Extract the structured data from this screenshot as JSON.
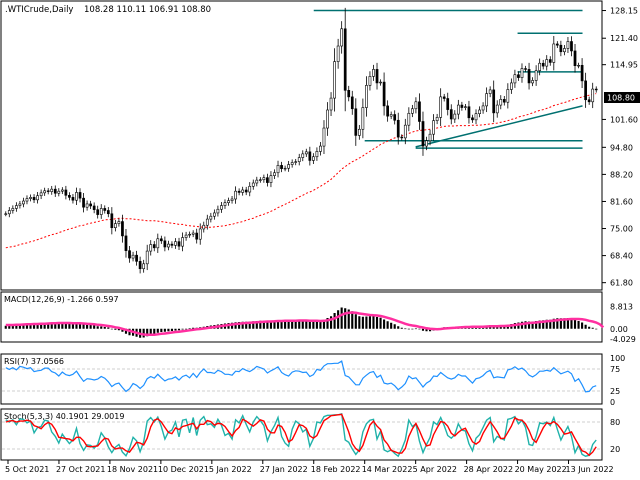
{
  "window": {
    "title": ".WTICrude,Daily",
    "ohlc": "108.28 110.11 106.91 108.80"
  },
  "chart_data": {
    "type": "candlestick",
    "instrument": ".WTICrude",
    "timeframe": "Daily",
    "last_price": "108.80",
    "x_ticks": [
      "5 Oct 2021",
      "27 Oct 2021",
      "18 Nov 2021",
      "10 Dec 2021",
      "5 Jan 2022",
      "27 Jan 2022",
      "18 Feb 2022",
      "14 Mar 2022",
      "5 Apr 2022",
      "28 Apr 2022",
      "20 May 2022",
      "13 Jun 2022"
    ],
    "price_ticks": [
      "128.15",
      "121.40",
      "114.95",
      "108.80",
      "101.60",
      "94.80",
      "88.20",
      "81.60",
      "75.00",
      "68.40",
      "61.80"
    ],
    "price_range": [
      60.5,
      129.5
    ],
    "closes": [
      78.6,
      79.4,
      79.9,
      80.6,
      81.0,
      81.7,
      82.3,
      82.6,
      82.0,
      83.0,
      83.7,
      84.2,
      84.0,
      84.6,
      83.6,
      84.1,
      84.4,
      83.1,
      82.6,
      81.9,
      83.8,
      82.4,
      80.2,
      81.0,
      80.5,
      79.6,
      78.4,
      79.9,
      79.4,
      78.6,
      75.2,
      76.2,
      76.7,
      73.2,
      69.6,
      67.8,
      68.5,
      67.0,
      65.2,
      66.4,
      69.5,
      71.1,
      70.3,
      72.5,
      72.0,
      70.5,
      71.2,
      70.9,
      71.8,
      70.7,
      72.8,
      73.4,
      73.6,
      73.9,
      72.4,
      74.9,
      75.8,
      77.3,
      78.0,
      78.8,
      79.7,
      80.6,
      81.3,
      81.8,
      82.2,
      84.1,
      83.8,
      84.4,
      83.9,
      85.3,
      86.1,
      86.8,
      86.9,
      87.4,
      86.2,
      87.9,
      88.6,
      90.4,
      89.6,
      89.7,
      90.6,
      91.1,
      91.3,
      92.3,
      93.2,
      93.7,
      91.6,
      92.5,
      93.8,
      95.1,
      99.5,
      103.9,
      106.8,
      115.7,
      119.5,
      123.7,
      108.7,
      107.1,
      104.2,
      97.7,
      99.2,
      104.5,
      109.9,
      112.1,
      113.8,
      110.5,
      110.7,
      104.9,
      102.4,
      102.8,
      101.4,
      97.3,
      97.1,
      100.2,
      103.1,
      104.2,
      105.9,
      101.1,
      95.1,
      96.4,
      98.0,
      101.3,
      102.1,
      107.1,
      106.7,
      104.0,
      101.7,
      102.9,
      105.1,
      104.5,
      104.7,
      102.0,
      101.5,
      103.0,
      103.9,
      104.9,
      107.9,
      108.8,
      103.2,
      105.1,
      106.5,
      105.8,
      108.9,
      110.5,
      112.5,
      111.8,
      114.0,
      113.8,
      110.5,
      111.1,
      113.5,
      115.3,
      114.6,
      116.2,
      115.5,
      120.0,
      119.7,
      118.1,
      118.9,
      120.6,
      118.3,
      114.7,
      114.8,
      111.0,
      106.4,
      105.9,
      109.0,
      108.8
    ],
    "ma_closes": [
      70.3,
      70.5,
      70.6,
      70.8,
      71.1,
      71.3,
      71.5,
      71.8,
      72.0,
      72.3,
      72.6,
      72.9,
      73.2,
      73.5,
      73.7,
      74.0,
      74.3,
      74.6,
      74.9,
      75.1,
      75.4,
      75.7,
      75.8,
      76.1,
      76.3,
      76.5,
      76.7,
      76.9,
      77.1,
      77.2,
      77.2,
      77.4,
      77.5,
      77.5,
      77.4,
      77.4,
      77.3,
      77.2,
      77.1,
      77.0,
      76.9,
      76.9,
      76.9,
      76.8,
      76.7,
      76.6,
      76.4,
      76.3,
      76.2,
      76.0,
      76.0,
      75.8,
      75.7,
      75.6,
      75.5,
      75.4,
      75.3,
      75.3,
      75.3,
      75.4,
      75.5,
      75.6,
      75.7,
      75.9,
      76.0,
      76.3,
      76.5,
      76.7,
      77.0,
      77.3,
      77.5,
      77.9,
      78.2,
      78.5,
      78.8,
      79.2,
      79.6,
      80.1,
      80.5,
      80.9,
      81.3,
      81.8,
      82.2,
      82.7,
      83.1,
      83.6,
      83.9,
      84.3,
      84.8,
      85.3,
      85.8,
      86.4,
      87.0,
      87.8,
      88.6,
      89.5,
      90.1,
      90.7,
      91.3,
      91.7,
      92.2,
      92.7,
      93.3,
      93.8,
      94.4,
      94.9,
      95.5,
      95.9,
      96.3,
      96.7,
      97.1,
      97.3,
      97.6,
      97.9,
      98.2,
      98.5,
      98.8,
      98.9,
      99.0,
      99.1,
      99.2,
      99.3,
      99.5,
      99.7,
      99.9,
      100.0,
      100.0,
      100.0,
      100.1,
      100.1,
      100.1,
      100.1,
      100.2,
      100.2,
      100.2,
      100.3,
      100.4,
      100.5,
      100.6,
      100.7,
      100.9,
      101.1,
      101.3,
      101.6,
      101.8,
      102.2,
      102.4,
      102.6,
      102.9,
      103.2,
      103.5,
      103.8,
      104.0,
      104.3,
      104.6,
      105.0,
      105.2,
      105.5,
      105.7,
      106.0,
      106.3,
      106.6,
      106.8,
      107.1,
      107.3,
      107.5,
      107.7,
      107.9
    ],
    "trendlines": [
      {
        "color": "#007070",
        "points": [
          [
            "18 Feb 2022",
            128.15
          ],
          [
            "13 Jun 2022",
            128.15
          ]
        ]
      },
      {
        "color": "#007070",
        "points": [
          [
            "14 Mar 2022",
            96.4
          ],
          [
            "13 Jun 2022",
            96.4
          ]
        ]
      },
      {
        "color": "#007070",
        "points": [
          [
            "5 Apr 2022",
            94.6
          ],
          [
            "13 Jun 2022",
            94.6
          ]
        ]
      },
      {
        "color": "#007070",
        "points": [
          [
            "5 Apr 2022",
            94.9
          ],
          [
            "13 Jun 2022",
            104.9
          ]
        ]
      },
      {
        "color": "#007070",
        "points": [
          [
            "20 May 2022",
            122.6
          ],
          [
            "13 Jun 2022",
            122.6
          ]
        ]
      },
      {
        "color": "#007070",
        "points": [
          [
            "20 May 2022",
            113.2
          ],
          [
            "13 Jun 2022",
            113.2
          ]
        ]
      }
    ],
    "ma_color": "#ff0000",
    "price_label_bg": "#000000",
    "panels": {
      "macd": {
        "label": "MACD(12,26,9) -1.266 0.597",
        "ticks": [
          "8.813",
          "0.00",
          "-4.029"
        ],
        "range": [
          -4.5,
          9.5
        ],
        "histogram_color": "#000000",
        "signal_color": "#ff2fa0",
        "values": [
          1.2,
          1.5,
          1.7,
          1.8,
          1.9,
          2.0,
          2.1,
          2.1,
          2.1,
          2.2,
          2.2,
          2.3,
          2.4,
          2.5,
          2.4,
          2.4,
          2.4,
          2.2,
          2.1,
          2.0,
          2.2,
          2.0,
          1.7,
          1.6,
          1.5,
          1.3,
          1.0,
          0.9,
          0.7,
          0.5,
          0.0,
          -0.4,
          -0.6,
          -1.2,
          -2.0,
          -2.6,
          -2.8,
          -3.2,
          -3.6,
          -3.5,
          -3.0,
          -2.4,
          -2.1,
          -1.6,
          -1.3,
          -1.2,
          -1.0,
          -0.9,
          -0.7,
          -0.6,
          -0.3,
          0.0,
          0.2,
          0.4,
          0.4,
          0.6,
          0.8,
          1.1,
          1.3,
          1.5,
          1.7,
          1.9,
          2.1,
          2.3,
          2.4,
          2.6,
          2.7,
          2.8,
          2.8,
          2.9,
          3.0,
          3.1,
          3.2,
          3.2,
          3.1,
          3.2,
          3.3,
          3.4,
          3.4,
          3.3,
          3.3,
          3.3,
          3.3,
          3.3,
          3.3,
          3.3,
          3.1,
          3.0,
          3.0,
          3.0,
          3.5,
          4.3,
          5.0,
          6.3,
          7.4,
          8.5,
          8.2,
          7.7,
          7.0,
          5.8,
          5.0,
          4.8,
          4.9,
          5.0,
          5.0,
          4.7,
          4.4,
          3.7,
          3.0,
          2.4,
          1.8,
          1.0,
          0.4,
          0.1,
          0.0,
          0.0,
          0.1,
          -0.2,
          -0.8,
          -1.0,
          -1.0,
          -0.7,
          -0.4,
          0.2,
          0.6,
          0.7,
          0.7,
          0.7,
          0.9,
          1.0,
          1.1,
          0.9,
          0.8,
          0.8,
          0.9,
          1.0,
          1.3,
          1.5,
          1.2,
          1.2,
          1.3,
          1.3,
          1.6,
          1.9,
          2.3,
          2.5,
          2.8,
          3.0,
          2.9,
          2.9,
          3.1,
          3.3,
          3.4,
          3.6,
          3.6,
          4.0,
          4.2,
          4.2,
          4.2,
          4.3,
          4.0,
          3.5,
          3.1,
          2.5,
          1.6,
          0.8,
          0.4,
          0.0
        ],
        "signal": [
          1.5,
          1.5,
          1.5,
          1.6,
          1.6,
          1.7,
          1.8,
          1.8,
          1.9,
          1.9,
          2.0,
          2.0,
          2.1,
          2.2,
          2.2,
          2.3,
          2.3,
          2.3,
          2.3,
          2.2,
          2.2,
          2.2,
          2.1,
          2.0,
          1.9,
          1.8,
          1.6,
          1.5,
          1.3,
          1.1,
          0.9,
          0.6,
          0.4,
          0.0,
          -0.4,
          -0.8,
          -1.2,
          -1.6,
          -2.0,
          -2.3,
          -2.4,
          -2.4,
          -2.4,
          -2.2,
          -2.0,
          -1.9,
          -1.7,
          -1.5,
          -1.3,
          -1.2,
          -1.0,
          -0.8,
          -0.6,
          -0.4,
          -0.2,
          -0.1,
          0.1,
          0.3,
          0.5,
          0.7,
          0.9,
          1.1,
          1.3,
          1.5,
          1.7,
          1.9,
          2.0,
          2.2,
          2.3,
          2.4,
          2.5,
          2.6,
          2.7,
          2.8,
          2.9,
          2.9,
          3.0,
          3.1,
          3.1,
          3.2,
          3.2,
          3.2,
          3.2,
          3.3,
          3.3,
          3.3,
          3.2,
          3.2,
          3.2,
          3.1,
          3.2,
          3.4,
          3.7,
          4.2,
          4.8,
          5.6,
          6.1,
          6.4,
          6.5,
          6.4,
          6.1,
          5.9,
          5.7,
          5.5,
          5.4,
          5.3,
          5.1,
          4.8,
          4.4,
          4.0,
          3.5,
          3.0,
          2.5,
          2.0,
          1.6,
          1.3,
          1.1,
          0.8,
          0.5,
          0.2,
          0.0,
          -0.1,
          -0.2,
          -0.1,
          0.1,
          0.2,
          0.3,
          0.4,
          0.5,
          0.6,
          0.7,
          0.7,
          0.8,
          0.8,
          0.8,
          0.8,
          0.9,
          1.0,
          1.0,
          1.0,
          1.1,
          1.1,
          1.2,
          1.3,
          1.5,
          1.7,
          1.9,
          2.1,
          2.3,
          2.4,
          2.5,
          2.7,
          2.8,
          3.0,
          3.1,
          3.3,
          3.4,
          3.6,
          3.7,
          3.8,
          3.9,
          3.9,
          3.9,
          3.8,
          3.6,
          3.2,
          2.9,
          2.5,
          1.8,
          0.6
        ]
      },
      "rsi": {
        "label": "RSI(7) 37.0566",
        "ticks": [
          "100",
          "75",
          "25",
          "0"
        ],
        "range": [
          0,
          100
        ],
        "line_color": "#1e90ff",
        "values": [
          78,
          74,
          78,
          73,
          81,
          79,
          76,
          78,
          69,
          71,
          72,
          77,
          77,
          69,
          66,
          59,
          68,
          62,
          60,
          63,
          70,
          58,
          47,
          53,
          52,
          50,
          52,
          58,
          54,
          46,
          35,
          41,
          43,
          33,
          24,
          30,
          42,
          38,
          31,
          38,
          53,
          58,
          54,
          63,
          55,
          48,
          52,
          53,
          57,
          50,
          58,
          61,
          55,
          65,
          56,
          67,
          75,
          67,
          67,
          65,
          72,
          69,
          63,
          63,
          61,
          70,
          69,
          76,
          72,
          69,
          74,
          81,
          78,
          75,
          66,
          71,
          75,
          80,
          67,
          62,
          59,
          68,
          71,
          70,
          67,
          68,
          58,
          62,
          74,
          72,
          82,
          87,
          87,
          88,
          88,
          93,
          60,
          57,
          48,
          39,
          39,
          54,
          61,
          67,
          69,
          56,
          61,
          43,
          41,
          43,
          37,
          28,
          34,
          42,
          59,
          53,
          55,
          45,
          34,
          43,
          48,
          59,
          58,
          67,
          61,
          55,
          52,
          55,
          63,
          59,
          59,
          51,
          43,
          53,
          55,
          60,
          68,
          72,
          55,
          57,
          56,
          55,
          73,
          75,
          80,
          74,
          77,
          71,
          61,
          57,
          62,
          70,
          70,
          72,
          70,
          78,
          71,
          64,
          67,
          70,
          64,
          47,
          53,
          39,
          23,
          24,
          34,
          37
        ],
        "levels": [
          75,
          25
        ]
      },
      "stoch": {
        "label": "Stoch(5,3,3) 40.1901 29.0019",
        "ticks": [
          "80",
          "20"
        ],
        "range": [
          0,
          100
        ],
        "k_color": "#20b2aa",
        "d_color": "#ff0000",
        "k": [
          85,
          80,
          85,
          74,
          87,
          86,
          78,
          82,
          56,
          68,
          70,
          84,
          82,
          58,
          48,
          33,
          53,
          42,
          32,
          40,
          66,
          32,
          17,
          29,
          28,
          22,
          30,
          56,
          45,
          25,
          12,
          24,
          30,
          13,
          5,
          21,
          46,
          38,
          14,
          36,
          82,
          90,
          80,
          91,
          70,
          42,
          58,
          62,
          80,
          47,
          84,
          86,
          56,
          90,
          50,
          84,
          92,
          74,
          76,
          68,
          86,
          73,
          50,
          55,
          42,
          85,
          78,
          94,
          75,
          58,
          80,
          92,
          83,
          72,
          38,
          58,
          72,
          90,
          48,
          33,
          26,
          64,
          82,
          76,
          58,
          64,
          26,
          43,
          80,
          78,
          92,
          95,
          95,
          96,
          96,
          98,
          40,
          35,
          20,
          8,
          18,
          58,
          76,
          84,
          86,
          42,
          60,
          18,
          14,
          18,
          10,
          4,
          20,
          40,
          84,
          70,
          76,
          38,
          12,
          30,
          46,
          80,
          74,
          90,
          72,
          50,
          44,
          52,
          76,
          62,
          60,
          32,
          16,
          44,
          52,
          68,
          84,
          90,
          36,
          48,
          44,
          40,
          86,
          88,
          92,
          76,
          84,
          68,
          30,
          28,
          48,
          78,
          76,
          80,
          72,
          90,
          64,
          40,
          56,
          70,
          48,
          12,
          28,
          8,
          4,
          6,
          30,
          40
        ],
        "d": [
          80,
          82,
          83,
          80,
          82,
          82,
          84,
          82,
          72,
          69,
          65,
          74,
          79,
          75,
          63,
          46,
          45,
          43,
          42,
          38,
          46,
          46,
          38,
          26,
          25,
          26,
          27,
          36,
          44,
          42,
          27,
          20,
          22,
          22,
          16,
          13,
          24,
          35,
          33,
          29,
          44,
          69,
          84,
          87,
          80,
          68,
          57,
          54,
          67,
          63,
          70,
          72,
          75,
          77,
          65,
          75,
          75,
          83,
          81,
          73,
          77,
          76,
          70,
          59,
          49,
          61,
          68,
          86,
          82,
          76,
          71,
          77,
          85,
          82,
          64,
          56,
          56,
          73,
          70,
          57,
          36,
          41,
          57,
          74,
          72,
          66,
          49,
          44,
          50,
          67,
          83,
          88,
          94,
          95,
          96,
          97,
          78,
          58,
          32,
          21,
          15,
          28,
          51,
          73,
          82,
          71,
          63,
          40,
          31,
          17,
          14,
          11,
          11,
          21,
          48,
          65,
          77,
          61,
          42,
          27,
          29,
          52,
          67,
          81,
          79,
          71,
          55,
          49,
          57,
          63,
          66,
          51,
          36,
          31,
          37,
          55,
          68,
          81,
          70,
          58,
          43,
          44,
          57,
          71,
          89,
          85,
          84,
          76,
          61,
          42,
          35,
          51,
          67,
          78,
          76,
          81,
          75,
          65,
          53,
          55,
          58,
          43,
          29,
          16,
          13,
          6,
          13,
          25
        ]
      }
    }
  }
}
